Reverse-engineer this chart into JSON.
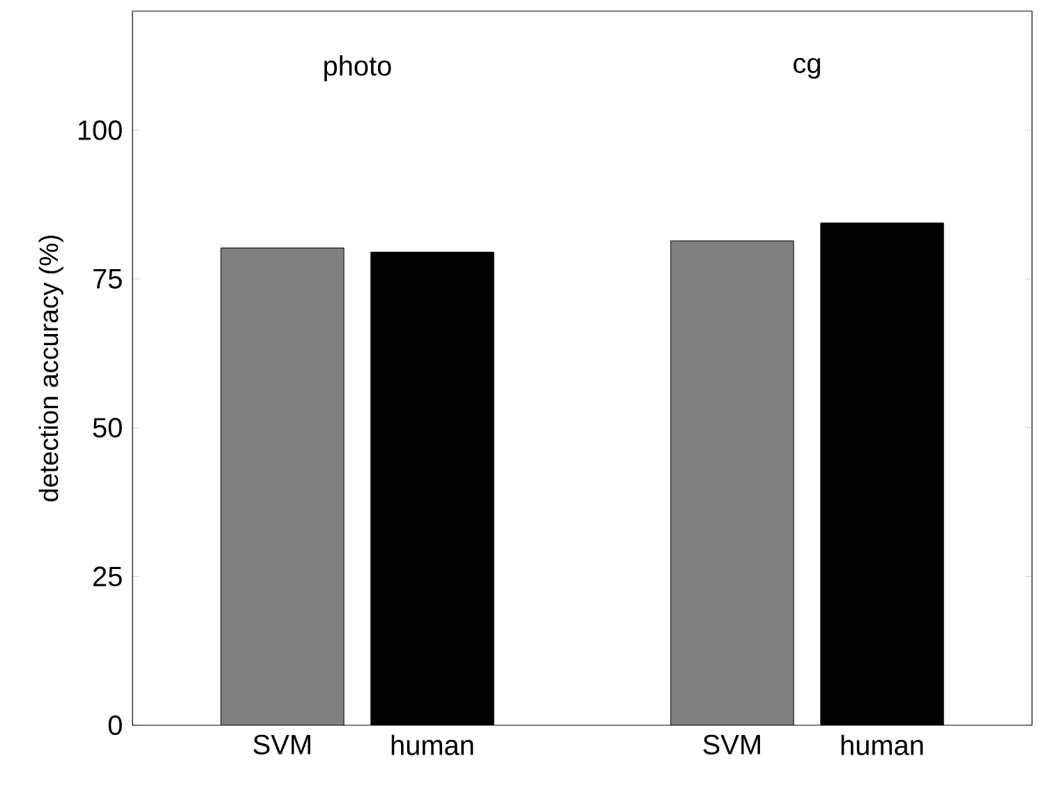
{
  "chart_data": {
    "type": "bar",
    "ylabel": "detection accuracy (%)",
    "categories": [
      "SVM",
      "human",
      null,
      "SVM",
      "human"
    ],
    "values": [
      80.2,
      79.5,
      null,
      81.4,
      84.4
    ],
    "colors": [
      "#808080",
      "#000000",
      null,
      "#808080",
      "#000000"
    ],
    "ylim": [
      0,
      120
    ],
    "yticks": [
      0,
      25,
      50,
      75,
      100
    ],
    "annotations": [
      "photo",
      "cg"
    ]
  }
}
